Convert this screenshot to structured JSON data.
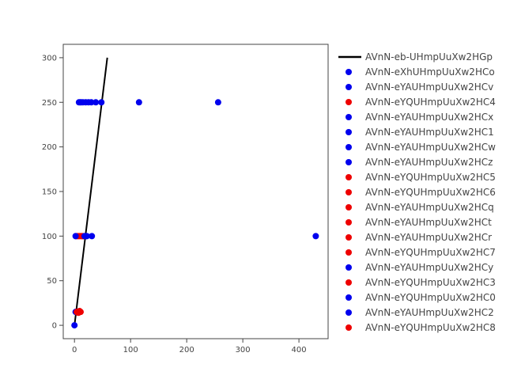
{
  "chart_data": {
    "type": "scatter",
    "title": "",
    "xlabel": "",
    "ylabel": "",
    "xlim": [
      -20,
      452
    ],
    "ylim": [
      -15,
      315
    ],
    "x_ticks": [
      0,
      100,
      200,
      300,
      400
    ],
    "y_ticks": [
      0,
      50,
      100,
      150,
      200,
      250,
      300
    ],
    "grid": false,
    "legend_position": "right",
    "colors": {
      "blue": "#0000ee",
      "red": "#ee0000",
      "line": "#000000",
      "axis": "#444444"
    },
    "series": [
      {
        "name": "AVnN-eb-UHmpUuXw2HGp",
        "mode": "line",
        "color": "#000000",
        "x": [
          0,
          58.5
        ],
        "y": [
          0,
          300
        ]
      },
      {
        "name": "AVnN-eXhUHmpUuXw2HCo",
        "mode": "markers",
        "color": "#0000ee",
        "x": [
          8,
          12,
          15
        ],
        "y": [
          250,
          250,
          250
        ]
      },
      {
        "name": "AVnN-eYAUHmpUuXw2HCv",
        "mode": "markers",
        "color": "#0000ee",
        "x": [
          10,
          20,
          30
        ],
        "y": [
          250,
          250,
          250
        ]
      },
      {
        "name": "AVnN-eYQUHmpUuXw2HC4",
        "mode": "markers",
        "color": "#ee0000",
        "x": [
          8,
          10
        ],
        "y": [
          15,
          15
        ]
      },
      {
        "name": "AVnN-eYAUHmpUuXw2HCx",
        "mode": "markers",
        "color": "#0000ee",
        "x": [
          25,
          38
        ],
        "y": [
          250,
          250
        ]
      },
      {
        "name": "AVnN-eYAUHmpUuXw2HC1",
        "mode": "markers",
        "color": "#0000ee",
        "x": [
          48,
          115
        ],
        "y": [
          250,
          250
        ]
      },
      {
        "name": "AVnN-eYAUHmpUuXw2HCw",
        "mode": "markers",
        "color": "#0000ee",
        "x": [
          256
        ],
        "y": [
          250
        ]
      },
      {
        "name": "AVnN-eYAUHmpUuXw2HCz",
        "mode": "markers",
        "color": "#0000ee",
        "x": [
          0,
          2
        ],
        "y": [
          0,
          15
        ]
      },
      {
        "name": "AVnN-eYQUHmpUuXw2HC5",
        "mode": "markers",
        "color": "#ee0000",
        "x": [
          5,
          7
        ],
        "y": [
          15,
          15
        ]
      },
      {
        "name": "AVnN-eYQUHmpUuXw2HC6",
        "mode": "markers",
        "color": "#ee0000",
        "x": [
          3,
          6
        ],
        "y": [
          100,
          100
        ]
      },
      {
        "name": "AVnN-eYAUHmpUuXw2HCq",
        "mode": "markers",
        "color": "#ee0000",
        "x": [
          9,
          12
        ],
        "y": [
          100,
          100
        ]
      },
      {
        "name": "AVnN-eYAUHmpUuXw2HCt",
        "mode": "markers",
        "color": "#ee0000",
        "x": [
          14
        ],
        "y": [
          100
        ]
      },
      {
        "name": "AVnN-eYAUHmpUuXw2HCr",
        "mode": "markers",
        "color": "#ee0000",
        "x": [
          16
        ],
        "y": [
          100
        ]
      },
      {
        "name": "AVnN-eYQUHmpUuXw2HC7",
        "mode": "markers",
        "color": "#ee0000",
        "x": [
          4
        ],
        "y": [
          15
        ]
      },
      {
        "name": "AVnN-eYAUHmpUuXw2HCy",
        "mode": "markers",
        "color": "#0000ee",
        "x": [
          2,
          20,
          31
        ],
        "y": [
          100,
          100,
          100
        ]
      },
      {
        "name": "AVnN-eYQUHmpUuXw2HC3",
        "mode": "markers",
        "color": "#ee0000",
        "x": [
          11
        ],
        "y": [
          15
        ]
      },
      {
        "name": "AVnN-eYQUHmpUuXw2HC0",
        "mode": "markers",
        "color": "#0000ee",
        "x": [
          430
        ],
        "y": [
          100
        ]
      },
      {
        "name": "AVnN-eYAUHmpUuXw2HC2",
        "mode": "markers",
        "color": "#0000ee",
        "x": [
          18,
          22
        ],
        "y": [
          100,
          100
        ]
      },
      {
        "name": "AVnN-eYQUHmpUuXw2HC8",
        "mode": "markers",
        "color": "#ee0000",
        "x": [
          7,
          9
        ],
        "y": [
          14,
          16
        ]
      }
    ]
  }
}
